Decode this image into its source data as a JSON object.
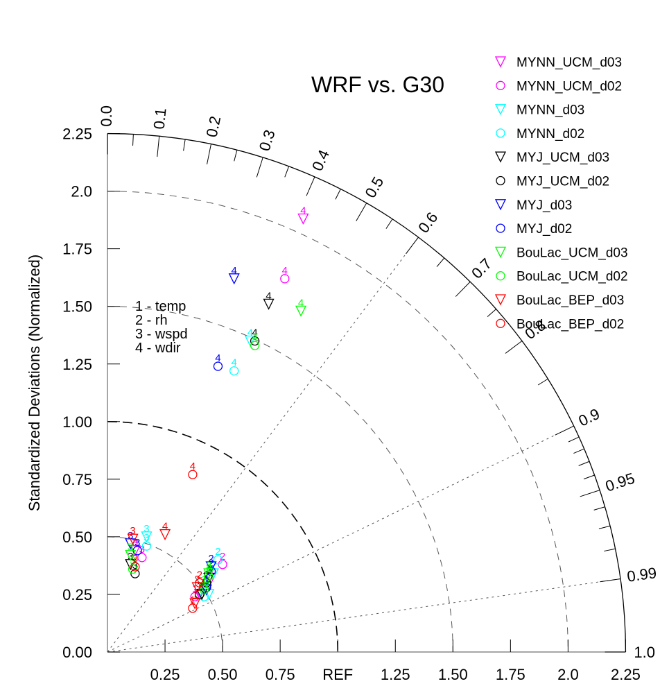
{
  "chart_data": {
    "type": "scatter",
    "subtype": "taylor-diagram",
    "title": "WRF vs. G30",
    "ylabel": "Standardized Deviations (Normalized)",
    "xlabel": "",
    "std_range": [
      0,
      2.25
    ],
    "reference_std": 1.0,
    "reference_label": "REF",
    "x_tick_labels": [
      "0.25",
      "0.50",
      "0.75",
      "REF",
      "1.25",
      "1.50",
      "1.75",
      "2.0",
      "2.25"
    ],
    "x_tick_values": [
      0.25,
      0.5,
      0.75,
      1.0,
      1.25,
      1.5,
      1.75,
      2.0,
      2.25
    ],
    "y_tick_labels": [
      "0.00",
      "0.25",
      "0.50",
      "0.75",
      "1.00",
      "1.25",
      "1.50",
      "1.75",
      "2.0",
      "2.25"
    ],
    "y_tick_values": [
      0,
      0.25,
      0.5,
      0.75,
      1.0,
      1.25,
      1.5,
      1.75,
      2.0,
      2.25
    ],
    "correlation_labels": [
      "0.0",
      "0.1",
      "0.2",
      "0.3",
      "0.4",
      "0.5",
      "0.6",
      "0.7",
      "0.8",
      "0.9",
      "0.95",
      "0.99",
      "1.0"
    ],
    "correlation_values": [
      0.0,
      0.1,
      0.2,
      0.3,
      0.4,
      0.5,
      0.6,
      0.7,
      0.8,
      0.9,
      0.95,
      0.99,
      1.0
    ],
    "correlation_minor_ticks": [
      0.05,
      0.15,
      0.25,
      0.35,
      0.45,
      0.55,
      0.65,
      0.75,
      0.85,
      0.91,
      0.92,
      0.93,
      0.94,
      0.96,
      0.97,
      0.98
    ],
    "correlation_rays": [
      0.6,
      0.9,
      0.99
    ],
    "std_arcs": [
      0.5,
      1.0,
      1.5,
      2.0
    ],
    "variable_key": [
      {
        "id": "1",
        "name": "temp",
        "text": "1 - temp"
      },
      {
        "id": "2",
        "name": "rh",
        "text": "2 - rh"
      },
      {
        "id": "3",
        "name": "wspd",
        "text": "3 - wspd"
      },
      {
        "id": "4",
        "name": "wdir",
        "text": "4 - wdir"
      }
    ],
    "legend_position": "top-right",
    "series": [
      {
        "name": "MYNN_UCM_d03",
        "marker": "triangle-down",
        "color": "#ff00ff",
        "points": [
          {
            "var": "1",
            "x": 0.4,
            "y": 0.25
          },
          {
            "var": "2",
            "x": 0.45,
            "y": 0.32
          },
          {
            "var": "3",
            "x": 0.12,
            "y": 0.44
          },
          {
            "var": "4",
            "x": 0.85,
            "y": 1.88
          }
        ]
      },
      {
        "name": "MYNN_UCM_d02",
        "marker": "circle",
        "color": "#ff00ff",
        "points": [
          {
            "var": "1",
            "x": 0.38,
            "y": 0.24
          },
          {
            "var": "2",
            "x": 0.5,
            "y": 0.38
          },
          {
            "var": "3",
            "x": 0.15,
            "y": 0.41
          },
          {
            "var": "4",
            "x": 0.77,
            "y": 1.62
          }
        ]
      },
      {
        "name": "MYNN_d03",
        "marker": "triangle-down",
        "color": "#00ffff",
        "points": [
          {
            "var": "1",
            "x": 0.44,
            "y": 0.25
          },
          {
            "var": "2",
            "x": 0.46,
            "y": 0.34
          },
          {
            "var": "3",
            "x": 0.17,
            "y": 0.5
          },
          {
            "var": "4",
            "x": 0.62,
            "y": 1.35
          }
        ]
      },
      {
        "name": "MYNN_d02",
        "marker": "circle",
        "color": "#00ffff",
        "points": [
          {
            "var": "1",
            "x": 0.42,
            "y": 0.24
          },
          {
            "var": "2",
            "x": 0.48,
            "y": 0.4
          },
          {
            "var": "3",
            "x": 0.17,
            "y": 0.46
          },
          {
            "var": "4",
            "x": 0.55,
            "y": 1.22
          }
        ]
      },
      {
        "name": "MYJ_UCM_d03",
        "marker": "triangle-down",
        "color": "#000000",
        "points": [
          {
            "var": "1",
            "x": 0.41,
            "y": 0.25
          },
          {
            "var": "2",
            "x": 0.44,
            "y": 0.32
          },
          {
            "var": "3",
            "x": 0.1,
            "y": 0.38
          },
          {
            "var": "4",
            "x": 0.7,
            "y": 1.51
          }
        ]
      },
      {
        "name": "MYJ_UCM_d02",
        "marker": "circle",
        "color": "#000000",
        "points": [
          {
            "var": "1",
            "x": 0.4,
            "y": 0.25
          },
          {
            "var": "2",
            "x": 0.43,
            "y": 0.3
          },
          {
            "var": "3",
            "x": 0.12,
            "y": 0.34
          },
          {
            "var": "4",
            "x": 0.64,
            "y": 1.35
          }
        ]
      },
      {
        "name": "MYJ_d03",
        "marker": "triangle-down",
        "color": "#0000ff",
        "points": [
          {
            "var": "1",
            "x": 0.43,
            "y": 0.27
          },
          {
            "var": "2",
            "x": 0.45,
            "y": 0.37
          },
          {
            "var": "3",
            "x": 0.1,
            "y": 0.47
          },
          {
            "var": "4",
            "x": 0.55,
            "y": 1.62
          }
        ]
      },
      {
        "name": "MYJ_d02",
        "marker": "circle",
        "color": "#0000ff",
        "points": [
          {
            "var": "1",
            "x": 0.43,
            "y": 0.28
          },
          {
            "var": "2",
            "x": 0.45,
            "y": 0.35
          },
          {
            "var": "3",
            "x": 0.13,
            "y": 0.44
          },
          {
            "var": "4",
            "x": 0.48,
            "y": 1.24
          }
        ]
      },
      {
        "name": "BouLac_UCM_d03",
        "marker": "triangle-down",
        "color": "#00ff00",
        "points": [
          {
            "var": "1",
            "x": 0.42,
            "y": 0.28
          },
          {
            "var": "2",
            "x": 0.44,
            "y": 0.34
          },
          {
            "var": "3",
            "x": 0.1,
            "y": 0.42
          },
          {
            "var": "4",
            "x": 0.84,
            "y": 1.48
          }
        ]
      },
      {
        "name": "BouLac_UCM_d02",
        "marker": "circle",
        "color": "#00ff00",
        "points": [
          {
            "var": "1",
            "x": 0.42,
            "y": 0.27
          },
          {
            "var": "2",
            "x": 0.44,
            "y": 0.33
          },
          {
            "var": "3",
            "x": 0.11,
            "y": 0.36
          },
          {
            "var": "4",
            "x": 0.64,
            "y": 1.33
          }
        ]
      },
      {
        "name": "BouLac_BEP_d03",
        "marker": "triangle-down",
        "color": "#ff0000",
        "points": [
          {
            "var": "1",
            "x": 0.38,
            "y": 0.21
          },
          {
            "var": "2",
            "x": 0.39,
            "y": 0.28
          },
          {
            "var": "3",
            "x": 0.11,
            "y": 0.49
          },
          {
            "var": "4",
            "x": 0.25,
            "y": 0.51
          }
        ]
      },
      {
        "name": "BouLac_BEP_d02",
        "marker": "circle",
        "color": "#ff0000",
        "points": [
          {
            "var": "1",
            "x": 0.37,
            "y": 0.19
          },
          {
            "var": "2",
            "x": 0.4,
            "y": 0.3
          },
          {
            "var": "3",
            "x": 0.12,
            "y": 0.37
          },
          {
            "var": "4",
            "x": 0.37,
            "y": 0.77
          }
        ]
      }
    ]
  }
}
